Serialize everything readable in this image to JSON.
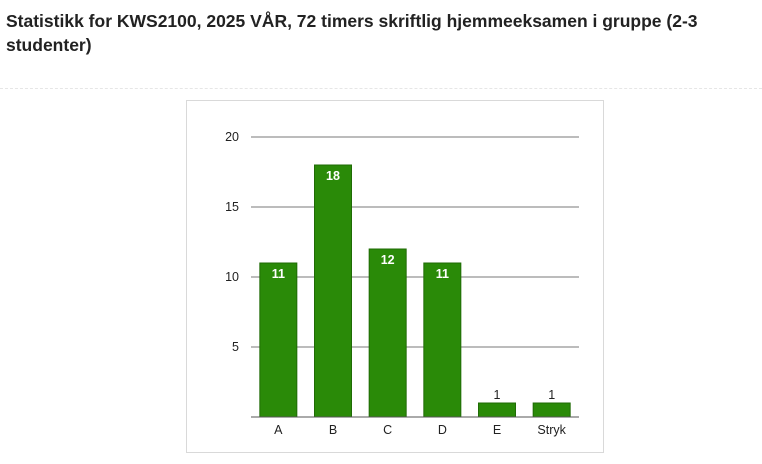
{
  "page": {
    "title": "Statistikk for KWS2100, 2025 VÅR, 72 timers skriftlig hjemmeeksamen i gruppe (2-3 studenter)"
  },
  "chart_data": {
    "type": "bar",
    "categories": [
      "A",
      "B",
      "C",
      "D",
      "E",
      "Stryk"
    ],
    "values": [
      11,
      18,
      12,
      11,
      1,
      1
    ],
    "ylim": [
      0,
      20
    ],
    "yticks": [
      5,
      10,
      15,
      20
    ],
    "grid": true,
    "legend": "none",
    "colors": {
      "bar": "#2a8a08",
      "bar_border": "#1f6b05",
      "grid": "#7a7a7a",
      "label_inside": "#ffffff",
      "label_outside": "#222222"
    }
  }
}
